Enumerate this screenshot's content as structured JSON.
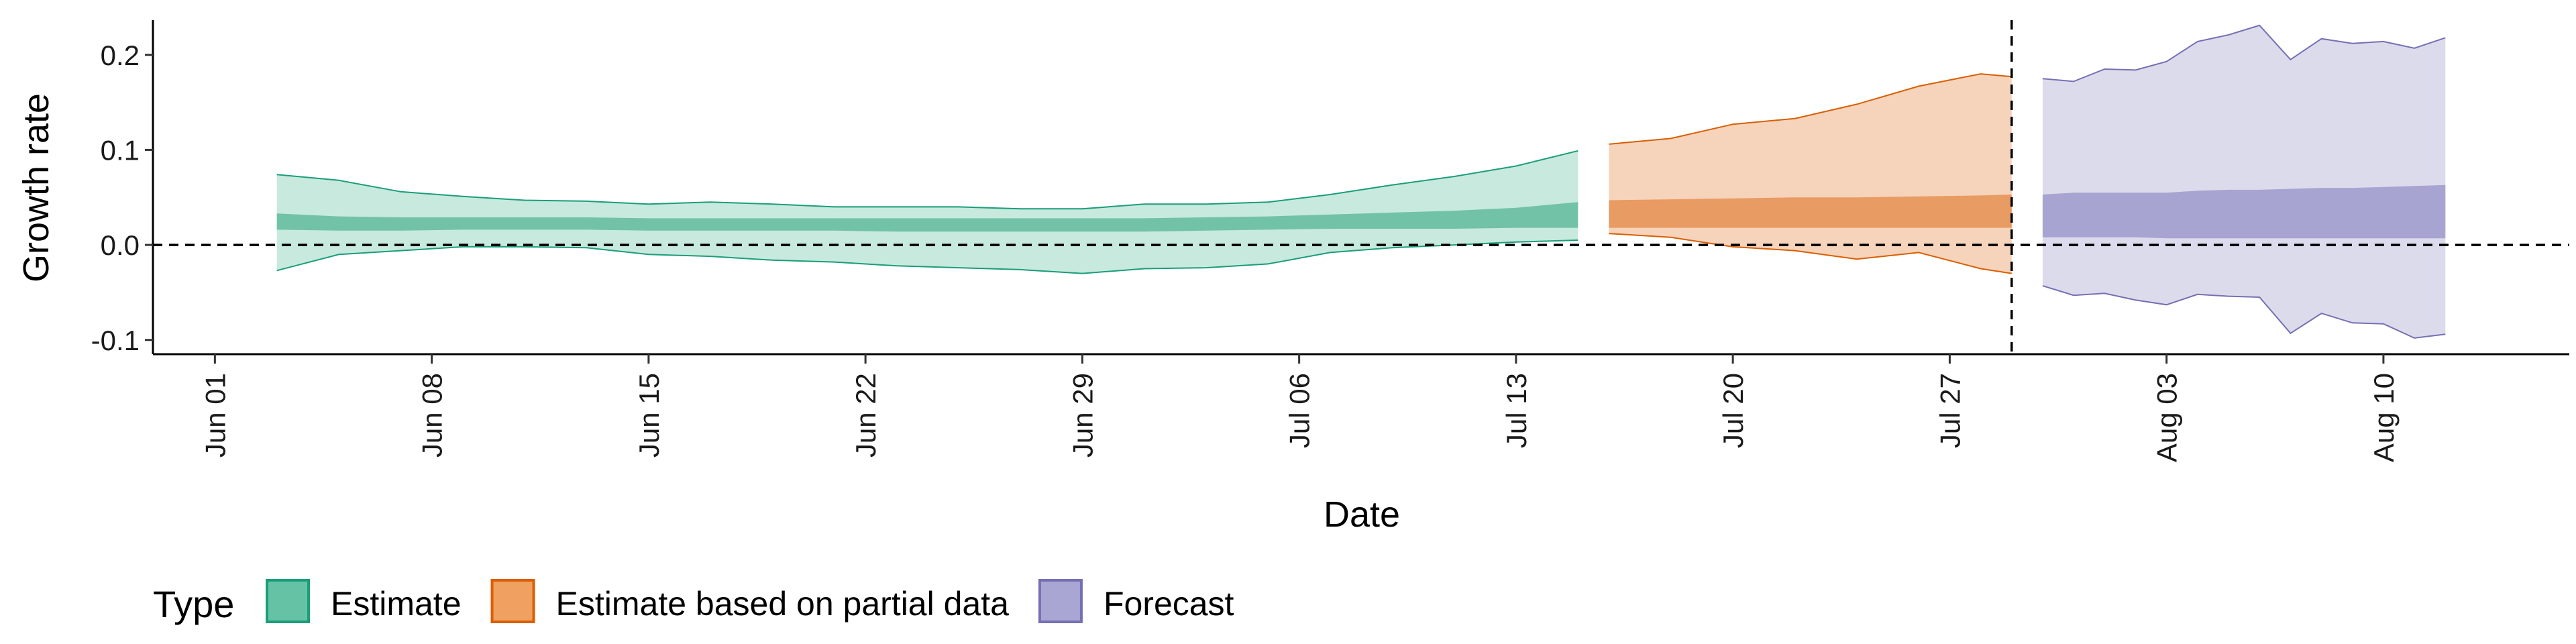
{
  "chart_data": {
    "type": "area",
    "xlabel": "Date",
    "ylabel": "Growth rate",
    "xlim": [
      "2020-05-30",
      "2020-08-16"
    ],
    "ylim": [
      -0.115,
      0.245
    ],
    "y_ticks": [
      {
        "value": 0.2,
        "label": "0.2"
      },
      {
        "value": 0.1,
        "label": "0.1"
      },
      {
        "value": 0.0,
        "label": "0.0"
      },
      {
        "value": -0.1,
        "label": "-0.1"
      }
    ],
    "x_ticks": [
      {
        "date": "2020-06-01",
        "label": "Jun 01"
      },
      {
        "date": "2020-06-08",
        "label": "Jun 08"
      },
      {
        "date": "2020-06-15",
        "label": "Jun 15"
      },
      {
        "date": "2020-06-22",
        "label": "Jun 22"
      },
      {
        "date": "2020-06-29",
        "label": "Jun 29"
      },
      {
        "date": "2020-07-06",
        "label": "Jul 06"
      },
      {
        "date": "2020-07-13",
        "label": "Jul 13"
      },
      {
        "date": "2020-07-20",
        "label": "Jul 20"
      },
      {
        "date": "2020-07-27",
        "label": "Jul 27"
      },
      {
        "date": "2020-08-03",
        "label": "Aug 03"
      },
      {
        "date": "2020-08-10",
        "label": "Aug 10"
      }
    ],
    "reference_lines": {
      "horizontal_y": 0.0,
      "vertical_date": "2020-07-29"
    },
    "grid": false,
    "legend": {
      "title": "Type",
      "placement": "bottom-left",
      "entries": [
        {
          "label": "Estimate",
          "fill": "#66c2a5",
          "border": "#1b9e77"
        },
        {
          "label": "Estimate based on partial data",
          "fill": "#f0a060",
          "border": "#d95f02"
        },
        {
          "label": "Forecast",
          "fill": "#a9a6d4",
          "border": "#7570b3"
        }
      ]
    },
    "series": [
      {
        "name": "Estimate",
        "fill_outer": "#c7e9de",
        "fill_inner": "#72c2a7",
        "line": "#1b9e77",
        "points": [
          {
            "date": "2020-06-03",
            "lower90": -0.027,
            "lower50": 0.016,
            "upper50": 0.033,
            "upper90": 0.074
          },
          {
            "date": "2020-06-05",
            "lower90": -0.01,
            "lower50": 0.015,
            "upper50": 0.03,
            "upper90": 0.068
          },
          {
            "date": "2020-06-07",
            "lower90": -0.006,
            "lower50": 0.015,
            "upper50": 0.029,
            "upper90": 0.056
          },
          {
            "date": "2020-06-09",
            "lower90": -0.002,
            "lower50": 0.016,
            "upper50": 0.029,
            "upper90": 0.051
          },
          {
            "date": "2020-06-11",
            "lower90": -0.002,
            "lower50": 0.016,
            "upper50": 0.029,
            "upper90": 0.047
          },
          {
            "date": "2020-06-13",
            "lower90": -0.003,
            "lower50": 0.016,
            "upper50": 0.029,
            "upper90": 0.046
          },
          {
            "date": "2020-06-15",
            "lower90": -0.01,
            "lower50": 0.015,
            "upper50": 0.028,
            "upper90": 0.043
          },
          {
            "date": "2020-06-17",
            "lower90": -0.012,
            "lower50": 0.015,
            "upper50": 0.028,
            "upper90": 0.045
          },
          {
            "date": "2020-06-19",
            "lower90": -0.016,
            "lower50": 0.015,
            "upper50": 0.028,
            "upper90": 0.043
          },
          {
            "date": "2020-06-21",
            "lower90": -0.018,
            "lower50": 0.015,
            "upper50": 0.028,
            "upper90": 0.04
          },
          {
            "date": "2020-06-23",
            "lower90": -0.022,
            "lower50": 0.014,
            "upper50": 0.028,
            "upper90": 0.04
          },
          {
            "date": "2020-06-25",
            "lower90": -0.024,
            "lower50": 0.014,
            "upper50": 0.028,
            "upper90": 0.04
          },
          {
            "date": "2020-06-27",
            "lower90": -0.026,
            "lower50": 0.014,
            "upper50": 0.028,
            "upper90": 0.038
          },
          {
            "date": "2020-06-29",
            "lower90": -0.03,
            "lower50": 0.014,
            "upper50": 0.028,
            "upper90": 0.038
          },
          {
            "date": "2020-07-01",
            "lower90": -0.025,
            "lower50": 0.014,
            "upper50": 0.028,
            "upper90": 0.043
          },
          {
            "date": "2020-07-03",
            "lower90": -0.024,
            "lower50": 0.015,
            "upper50": 0.029,
            "upper90": 0.043
          },
          {
            "date": "2020-07-05",
            "lower90": -0.02,
            "lower50": 0.016,
            "upper50": 0.03,
            "upper90": 0.045
          },
          {
            "date": "2020-07-07",
            "lower90": -0.008,
            "lower50": 0.017,
            "upper50": 0.032,
            "upper90": 0.053
          },
          {
            "date": "2020-07-09",
            "lower90": -0.003,
            "lower50": 0.017,
            "upper50": 0.034,
            "upper90": 0.063
          },
          {
            "date": "2020-07-11",
            "lower90": 0.0,
            "lower50": 0.017,
            "upper50": 0.036,
            "upper90": 0.072
          },
          {
            "date": "2020-07-13",
            "lower90": 0.003,
            "lower50": 0.018,
            "upper50": 0.039,
            "upper90": 0.083
          },
          {
            "date": "2020-07-15",
            "lower90": 0.005,
            "lower50": 0.018,
            "upper50": 0.045,
            "upper90": 0.099
          }
        ]
      },
      {
        "name": "Estimate based on partial data",
        "fill_outer": "#f6d3bb",
        "fill_inner": "#e89b62",
        "line": "#d95f02",
        "points": [
          {
            "date": "2020-07-16",
            "lower90": 0.012,
            "lower50": 0.018,
            "upper50": 0.047,
            "upper90": 0.106
          },
          {
            "date": "2020-07-18",
            "lower90": 0.008,
            "lower50": 0.018,
            "upper50": 0.048,
            "upper90": 0.112
          },
          {
            "date": "2020-07-20",
            "lower90": -0.002,
            "lower50": 0.018,
            "upper50": 0.049,
            "upper90": 0.127
          },
          {
            "date": "2020-07-22",
            "lower90": -0.006,
            "lower50": 0.018,
            "upper50": 0.05,
            "upper90": 0.133
          },
          {
            "date": "2020-07-24",
            "lower90": -0.015,
            "lower50": 0.018,
            "upper50": 0.05,
            "upper90": 0.148
          },
          {
            "date": "2020-07-26",
            "lower90": -0.008,
            "lower50": 0.018,
            "upper50": 0.051,
            "upper90": 0.167
          },
          {
            "date": "2020-07-28",
            "lower90": -0.025,
            "lower50": 0.018,
            "upper50": 0.052,
            "upper90": 0.18
          },
          {
            "date": "2020-07-29",
            "lower90": -0.03,
            "lower50": 0.018,
            "upper50": 0.053,
            "upper90": 0.177
          }
        ]
      },
      {
        "name": "Forecast",
        "fill_outer": "#dcdbec",
        "fill_inner": "#a8a4d2",
        "line": "#7570b3",
        "points": [
          {
            "date": "2020-07-30",
            "lower90": -0.043,
            "lower50": 0.008,
            "upper50": 0.053,
            "upper90": 0.175
          },
          {
            "date": "2020-07-31",
            "lower90": -0.053,
            "lower50": 0.008,
            "upper50": 0.055,
            "upper90": 0.172
          },
          {
            "date": "2020-08-01",
            "lower90": -0.051,
            "lower50": 0.008,
            "upper50": 0.055,
            "upper90": 0.185
          },
          {
            "date": "2020-08-02",
            "lower90": -0.058,
            "lower50": 0.008,
            "upper50": 0.055,
            "upper90": 0.184
          },
          {
            "date": "2020-08-03",
            "lower90": -0.063,
            "lower50": 0.007,
            "upper50": 0.055,
            "upper90": 0.193
          },
          {
            "date": "2020-08-04",
            "lower90": -0.052,
            "lower50": 0.007,
            "upper50": 0.057,
            "upper90": 0.214
          },
          {
            "date": "2020-08-05",
            "lower90": -0.054,
            "lower50": 0.007,
            "upper50": 0.058,
            "upper90": 0.221
          },
          {
            "date": "2020-08-06",
            "lower90": -0.055,
            "lower50": 0.007,
            "upper50": 0.058,
            "upper90": 0.231
          },
          {
            "date": "2020-08-07",
            "lower90": -0.093,
            "lower50": 0.007,
            "upper50": 0.059,
            "upper90": 0.195
          },
          {
            "date": "2020-08-08",
            "lower90": -0.072,
            "lower50": 0.007,
            "upper50": 0.06,
            "upper90": 0.217
          },
          {
            "date": "2020-08-09",
            "lower90": -0.082,
            "lower50": 0.007,
            "upper50": 0.06,
            "upper90": 0.212
          },
          {
            "date": "2020-08-10",
            "lower90": -0.083,
            "lower50": 0.007,
            "upper50": 0.061,
            "upper90": 0.214
          },
          {
            "date": "2020-08-11",
            "lower90": -0.098,
            "lower50": 0.007,
            "upper50": 0.062,
            "upper90": 0.207
          },
          {
            "date": "2020-08-12",
            "lower90": -0.094,
            "lower50": 0.007,
            "upper50": 0.063,
            "upper90": 0.218
          }
        ]
      }
    ]
  }
}
